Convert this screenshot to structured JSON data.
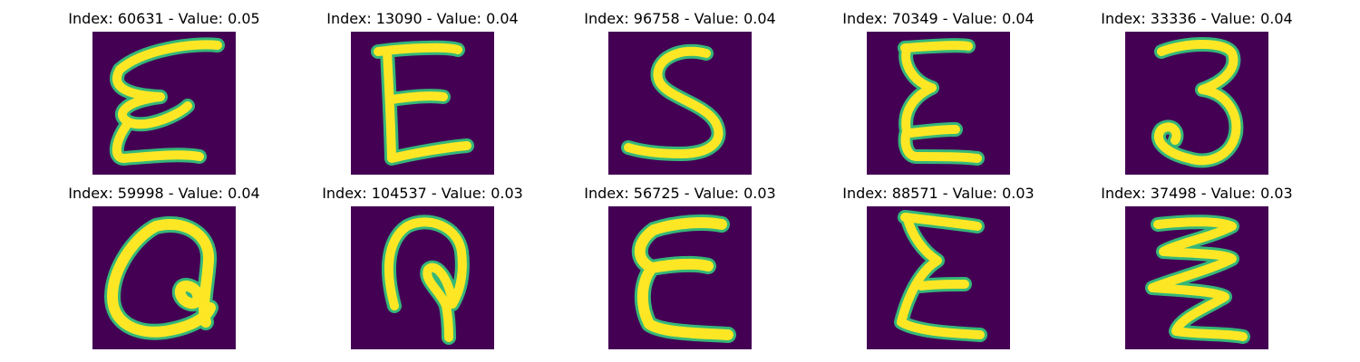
{
  "figure": {
    "background_color": "#440154",
    "stroke_color": "#fde725",
    "edge_color": "#35b779",
    "panels": [
      {
        "index_label": "Index:",
        "index": "60631",
        "value_label": "Value:",
        "value": "0.05",
        "glyph": "epsilon-curly"
      },
      {
        "index_label": "Index:",
        "index": "13090",
        "value_label": "Value:",
        "value": "0.04",
        "glyph": "E"
      },
      {
        "index_label": "Index:",
        "index": "96758",
        "value_label": "Value:",
        "value": "0.04",
        "glyph": "S"
      },
      {
        "index_label": "Index:",
        "index": "70349",
        "value_label": "Value:",
        "value": "0.04",
        "glyph": "epsilon"
      },
      {
        "index_label": "Index:",
        "index": "33336",
        "value_label": "Value:",
        "value": "0.04",
        "glyph": "3"
      },
      {
        "index_label": "Index:",
        "index": "59998",
        "value_label": "Value:",
        "value": "0.04",
        "glyph": "a-loop"
      },
      {
        "index_label": "Index:",
        "index": "104537",
        "value_label": "Value:",
        "value": "0.03",
        "glyph": "P-loop"
      },
      {
        "index_label": "Index:",
        "index": "56725",
        "value_label": "Value:",
        "value": "0.03",
        "glyph": "epsilon-wide"
      },
      {
        "index_label": "Index:",
        "index": "88571",
        "value_label": "Value:",
        "value": "0.03",
        "glyph": "epsilon-slant"
      },
      {
        "index_label": "Index:",
        "index": "37498",
        "value_label": "Value:",
        "value": "0.03",
        "glyph": "zigzag"
      }
    ]
  }
}
